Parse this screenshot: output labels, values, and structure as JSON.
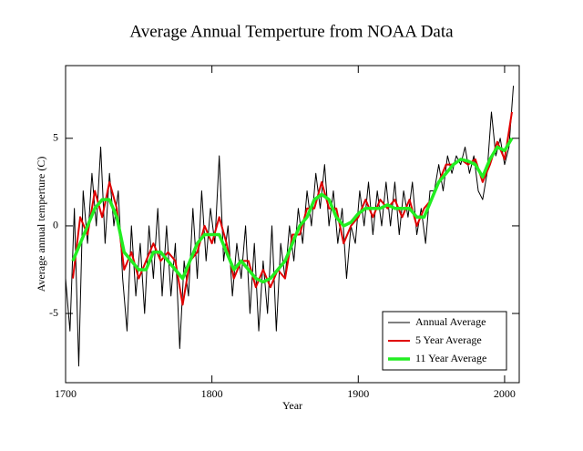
{
  "chart_data": {
    "type": "line",
    "title": "Average Annual Temperture from NOAA Data",
    "xlabel": "Year",
    "ylabel": "Average annual temperture (C)",
    "xlim": [
      1700,
      2010
    ],
    "ylim": [
      -8.95,
      9.15
    ],
    "xticks": [
      1700,
      1800,
      1900,
      2000
    ],
    "yticks": [
      -5,
      0,
      5
    ],
    "legend": "lower right",
    "grid": false,
    "series": [
      {
        "name": "Annual Average",
        "color": "#000000",
        "width": 1,
        "x": [
          1700,
          1703,
          1706,
          1709,
          1712,
          1715,
          1718,
          1721,
          1724,
          1727,
          1730,
          1733,
          1736,
          1739,
          1742,
          1745,
          1748,
          1751,
          1754,
          1757,
          1760,
          1763,
          1766,
          1769,
          1772,
          1775,
          1778,
          1781,
          1784,
          1787,
          1790,
          1793,
          1796,
          1799,
          1802,
          1805,
          1808,
          1811,
          1814,
          1817,
          1820,
          1823,
          1826,
          1829,
          1832,
          1835,
          1838,
          1841,
          1844,
          1847,
          1850,
          1853,
          1856,
          1859,
          1862,
          1865,
          1868,
          1871,
          1874,
          1877,
          1880,
          1883,
          1886,
          1889,
          1892,
          1895,
          1898,
          1901,
          1904,
          1907,
          1910,
          1913,
          1916,
          1919,
          1922,
          1925,
          1928,
          1931,
          1934,
          1937,
          1940,
          1943,
          1946,
          1949,
          1952,
          1955,
          1958,
          1961,
          1964,
          1967,
          1970,
          1973,
          1976,
          1979,
          1982,
          1985,
          1988,
          1991,
          1994,
          1997,
          2000,
          2003,
          2006
        ],
        "values": [
          -3,
          -6,
          1,
          -8,
          2,
          -1,
          3,
          0,
          4.5,
          -1,
          3,
          0,
          2,
          -3,
          -6,
          0,
          -4,
          -1,
          -5,
          0,
          -3,
          1,
          -4,
          0,
          -4,
          -1,
          -7,
          -2,
          -4,
          1,
          -3,
          2,
          -2,
          1,
          -1,
          4,
          -2,
          0,
          -4,
          -1,
          -3,
          0,
          -5,
          -1,
          -6,
          -2,
          -5,
          0,
          -6,
          -1,
          -3,
          0,
          -2,
          1,
          -1,
          2,
          0,
          3,
          1,
          3.5,
          0,
          2,
          -1,
          1,
          -3,
          0,
          -1,
          2,
          0,
          2.5,
          -0.5,
          2,
          0,
          2.5,
          0,
          2.5,
          -0.5,
          2,
          0.5,
          2.5,
          -0.5,
          1,
          -1,
          2,
          2,
          3.5,
          2,
          4,
          3,
          4,
          3.5,
          4.5,
          3,
          4,
          2,
          1.5,
          3,
          6.5,
          4,
          5,
          3.5,
          4.5,
          8
        ]
      },
      {
        "name": "5 Year Average",
        "color": "#e00000",
        "width": 2,
        "x": [
          1705,
          1710,
          1715,
          1720,
          1725,
          1730,
          1735,
          1740,
          1745,
          1750,
          1755,
          1760,
          1765,
          1770,
          1775,
          1780,
          1785,
          1790,
          1795,
          1800,
          1805,
          1810,
          1815,
          1820,
          1825,
          1830,
          1835,
          1840,
          1845,
          1850,
          1855,
          1860,
          1865,
          1870,
          1875,
          1880,
          1885,
          1890,
          1895,
          1900,
          1905,
          1910,
          1915,
          1920,
          1925,
          1930,
          1935,
          1940,
          1945,
          1950,
          1955,
          1960,
          1965,
          1970,
          1975,
          1980,
          1985,
          1990,
          1995,
          2000,
          2005
        ],
        "values": [
          -3,
          0.5,
          -0.5,
          2,
          0.5,
          2.5,
          1,
          -2.5,
          -1.5,
          -3,
          -2,
          -1,
          -2,
          -1.5,
          -2,
          -4.5,
          -2,
          -1.5,
          0,
          -1,
          0.5,
          -1,
          -3,
          -2,
          -2,
          -3.5,
          -2.5,
          -3.5,
          -2.5,
          -3,
          -0.5,
          -0.5,
          1,
          1,
          2.5,
          1,
          1,
          -1,
          0,
          0.5,
          1.5,
          0.5,
          1.5,
          1,
          1.5,
          0.5,
          1.5,
          0,
          1,
          1.5,
          2.5,
          3.5,
          3.5,
          3.8,
          3.5,
          3.8,
          2.5,
          3.5,
          4.8,
          3.8,
          6.5
        ]
      },
      {
        "name": "11 Year Average",
        "color": "#22ee22",
        "width": 3.5,
        "x": [
          1705,
          1710,
          1715,
          1720,
          1725,
          1730,
          1735,
          1740,
          1745,
          1750,
          1755,
          1760,
          1765,
          1770,
          1775,
          1780,
          1785,
          1790,
          1795,
          1800,
          1805,
          1810,
          1815,
          1820,
          1825,
          1830,
          1835,
          1840,
          1845,
          1850,
          1855,
          1860,
          1865,
          1870,
          1875,
          1880,
          1885,
          1890,
          1895,
          1900,
          1905,
          1910,
          1915,
          1920,
          1925,
          1930,
          1935,
          1940,
          1945,
          1950,
          1955,
          1960,
          1965,
          1970,
          1975,
          1980,
          1985,
          1990,
          1995,
          2000,
          2005
        ],
        "values": [
          -2,
          -1,
          0,
          1,
          1.5,
          1.5,
          0.5,
          -1.5,
          -2,
          -2.5,
          -2.5,
          -1.5,
          -1.5,
          -2,
          -2.5,
          -3,
          -2,
          -1,
          -0.5,
          -0.5,
          -0.5,
          -1.5,
          -2.5,
          -2,
          -2.5,
          -3,
          -3.2,
          -3,
          -2.5,
          -2,
          -1,
          0,
          0.5,
          1.5,
          1.8,
          1.5,
          0.5,
          0,
          0.2,
          0.7,
          1,
          1,
          1,
          1.2,
          1,
          1,
          1,
          0.5,
          0.5,
          1.5,
          2.5,
          3,
          3.5,
          3.8,
          3.7,
          3.5,
          2.8,
          3.8,
          4.5,
          4.3,
          5
        ]
      }
    ]
  }
}
